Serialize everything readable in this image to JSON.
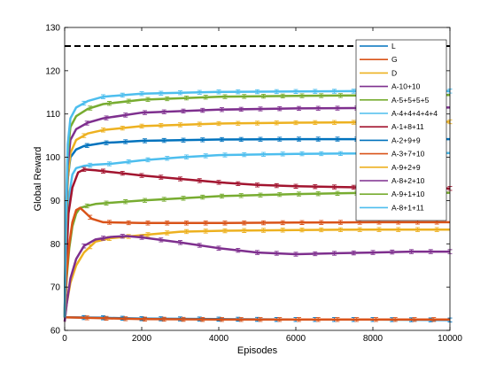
{
  "chart_data": {
    "type": "line",
    "title": "",
    "xlabel": "Episodes",
    "ylabel": "Global Reward",
    "xlim": [
      0,
      10000
    ],
    "ylim": [
      60,
      130
    ],
    "xticks": [
      "0",
      "2000",
      "4000",
      "6000",
      "8000",
      "10000"
    ],
    "yticks": [
      "60",
      "70",
      "80",
      "90",
      "100",
      "110",
      "120",
      "130"
    ],
    "grid": false,
    "legend_position": "top-right",
    "reference_line": {
      "y": 125.7,
      "style": "dashed",
      "color": "#000000"
    },
    "series": [
      {
        "name": "L",
        "color": "#0072BD",
        "points": [
          [
            0,
            63
          ],
          [
            1000,
            62.9
          ],
          [
            2000,
            62.7
          ],
          [
            4000,
            62.6
          ],
          [
            6000,
            62.5
          ],
          [
            8000,
            62.5
          ],
          [
            10000,
            62.4
          ]
        ]
      },
      {
        "name": "G",
        "color": "#D95319",
        "points": [
          [
            0,
            63
          ],
          [
            500,
            62.9
          ],
          [
            1000,
            62.8
          ],
          [
            2000,
            62.6
          ],
          [
            4000,
            62.5
          ],
          [
            6000,
            62.5
          ],
          [
            8000,
            62.5
          ],
          [
            10000,
            62.5
          ]
        ]
      },
      {
        "name": "D",
        "color": "#EDB120",
        "points": [
          [
            0,
            62
          ],
          [
            50,
            66
          ],
          [
            150,
            71
          ],
          [
            300,
            75
          ],
          [
            500,
            78
          ],
          [
            800,
            80.5
          ],
          [
            1200,
            81.3
          ],
          [
            2000,
            82
          ],
          [
            3000,
            82.8
          ],
          [
            4000,
            83
          ],
          [
            6000,
            83.2
          ],
          [
            8000,
            83.3
          ],
          [
            10000,
            83.3
          ]
        ]
      },
      {
        "name": "A-10+10",
        "color": "#7E2F8E",
        "points": [
          [
            0,
            62
          ],
          [
            50,
            66
          ],
          [
            150,
            72
          ],
          [
            300,
            76.5
          ],
          [
            500,
            79.5
          ],
          [
            800,
            81
          ],
          [
            1200,
            81.6
          ],
          [
            1600,
            81.8
          ],
          [
            2000,
            81.5
          ],
          [
            3000,
            80.3
          ],
          [
            4000,
            79
          ],
          [
            5000,
            78
          ],
          [
            6000,
            77.6
          ],
          [
            7000,
            77.8
          ],
          [
            8000,
            78
          ],
          [
            9000,
            78.2
          ],
          [
            10000,
            78.2
          ]
        ]
      },
      {
        "name": "A-5+5+5+5",
        "color": "#77AC30",
        "points": [
          [
            0,
            63
          ],
          [
            50,
            72
          ],
          [
            120,
            79
          ],
          [
            200,
            84
          ],
          [
            300,
            87
          ],
          [
            400,
            88.3
          ],
          [
            600,
            88.8
          ],
          [
            800,
            89.2
          ],
          [
            1200,
            89.5
          ],
          [
            2000,
            90
          ],
          [
            4000,
            91
          ],
          [
            6000,
            91.5
          ],
          [
            8000,
            91.8
          ],
          [
            10000,
            91.8
          ]
        ]
      },
      {
        "name": "A-4+4+4+4+4",
        "color": "#4DBEEE",
        "points": [
          [
            0,
            63
          ],
          [
            40,
            75
          ],
          [
            100,
            90
          ],
          [
            200,
            96
          ],
          [
            300,
            97.5
          ],
          [
            500,
            98
          ],
          [
            800,
            98.3
          ],
          [
            1200,
            98.5
          ],
          [
            2000,
            99.3
          ],
          [
            3000,
            100
          ],
          [
            4000,
            100.5
          ],
          [
            6000,
            100.8
          ],
          [
            8000,
            100.9
          ],
          [
            10000,
            101
          ]
        ]
      },
      {
        "name": "A-1+8+11",
        "color": "#A2142F",
        "points": [
          [
            0,
            63
          ],
          [
            40,
            75
          ],
          [
            100,
            87
          ],
          [
            200,
            93
          ],
          [
            350,
            96.5
          ],
          [
            500,
            97.2
          ],
          [
            800,
            97
          ],
          [
            1200,
            96.6
          ],
          [
            2000,
            95.8
          ],
          [
            3000,
            95
          ],
          [
            4000,
            94.2
          ],
          [
            5000,
            93.6
          ],
          [
            6000,
            93.3
          ],
          [
            8000,
            93
          ],
          [
            10000,
            92.8
          ]
        ]
      },
      {
        "name": "A-2+9+9",
        "color": "#0072BD",
        "points": [
          [
            0,
            63
          ],
          [
            30,
            80
          ],
          [
            80,
            95
          ],
          [
            150,
            100
          ],
          [
            300,
            101.8
          ],
          [
            500,
            102.6
          ],
          [
            1000,
            103.3
          ],
          [
            2000,
            103.8
          ],
          [
            4000,
            104.1
          ],
          [
            6000,
            104.2
          ],
          [
            8000,
            104.2
          ],
          [
            10000,
            104.2
          ]
        ]
      },
      {
        "name": "A-3+7+10",
        "color": "#D95319",
        "points": [
          [
            0,
            63
          ],
          [
            50,
            73
          ],
          [
            120,
            80
          ],
          [
            200,
            85
          ],
          [
            300,
            87.8
          ],
          [
            400,
            88.3
          ],
          [
            500,
            87.5
          ],
          [
            700,
            85.8
          ],
          [
            1000,
            85
          ],
          [
            2000,
            84.8
          ],
          [
            4000,
            84.8
          ],
          [
            6000,
            84.9
          ],
          [
            8000,
            85
          ],
          [
            10000,
            85
          ]
        ]
      },
      {
        "name": "A-9+2+9",
        "color": "#EDB120",
        "points": [
          [
            0,
            63
          ],
          [
            30,
            80
          ],
          [
            80,
            95
          ],
          [
            150,
            101
          ],
          [
            300,
            104
          ],
          [
            600,
            105.5
          ],
          [
            1000,
            106.3
          ],
          [
            2000,
            107.2
          ],
          [
            4000,
            107.8
          ],
          [
            6000,
            108
          ],
          [
            8000,
            108.1
          ],
          [
            10000,
            108.2
          ]
        ]
      },
      {
        "name": "A-8+2+10",
        "color": "#7E2F8E",
        "points": [
          [
            0,
            63
          ],
          [
            30,
            82
          ],
          [
            80,
            98
          ],
          [
            150,
            104
          ],
          [
            300,
            106.5
          ],
          [
            600,
            108
          ],
          [
            1000,
            109
          ],
          [
            2000,
            110.3
          ],
          [
            4000,
            111
          ],
          [
            6000,
            111.3
          ],
          [
            8000,
            111.4
          ],
          [
            10000,
            111.5
          ]
        ]
      },
      {
        "name": "A-9+1+10",
        "color": "#77AC30",
        "points": [
          [
            0,
            63
          ],
          [
            30,
            84
          ],
          [
            80,
            101
          ],
          [
            150,
            107
          ],
          [
            300,
            109.5
          ],
          [
            600,
            111.2
          ],
          [
            1000,
            112.3
          ],
          [
            2000,
            113.3
          ],
          [
            4000,
            114
          ],
          [
            6000,
            114.2
          ],
          [
            8000,
            114.3
          ],
          [
            10000,
            114.4
          ]
        ]
      },
      {
        "name": "A-8+1+11",
        "color": "#4DBEEE",
        "points": [
          [
            0,
            63
          ],
          [
            30,
            85
          ],
          [
            80,
            103
          ],
          [
            150,
            109
          ],
          [
            300,
            111.5
          ],
          [
            600,
            113
          ],
          [
            1000,
            114
          ],
          [
            2000,
            114.7
          ],
          [
            4000,
            115.1
          ],
          [
            6000,
            115.2
          ],
          [
            8000,
            115.3
          ],
          [
            10000,
            115.3
          ]
        ]
      }
    ]
  }
}
